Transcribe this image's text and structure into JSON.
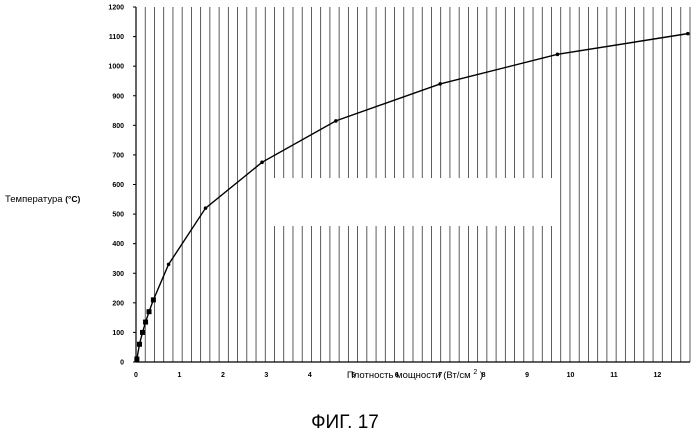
{
  "chart_data": {
    "type": "line",
    "title": "",
    "caption": "ФИГ. 17",
    "ylabel": "Температура",
    "ylabel_unit": "(°C)",
    "xlabel": "Плотность мощности (Вт/см",
    "xlabel_sup": "2",
    "xlabel_close": ")",
    "xlim": [
      0,
      12.75
    ],
    "ylim": [
      0,
      1200
    ],
    "x_ticks": [
      "0",
      "1",
      "2",
      "3",
      "4",
      "5",
      "6",
      "7",
      "8",
      "9",
      "10",
      "11",
      "12"
    ],
    "y_ticks": [
      "0",
      "100",
      "200",
      "300",
      "400",
      "500",
      "600",
      "700",
      "800",
      "900",
      "1000",
      "1100",
      "1200"
    ],
    "grid": "vertical",
    "series": [
      {
        "color": "#000000",
        "x": [
          0.02,
          0.08,
          0.15,
          0.22,
          0.3,
          0.4,
          0.75,
          1.6,
          2.9,
          4.6,
          7.0,
          9.7,
          12.7
        ],
        "y": [
          10,
          60,
          100,
          135,
          170,
          210,
          330,
          520,
          675,
          815,
          940,
          1040,
          1110
        ],
        "markers": [
          {
            "x": 0.02,
            "y": 10,
            "shape": "square"
          },
          {
            "x": 0.08,
            "y": 60,
            "shape": "square"
          },
          {
            "x": 0.15,
            "y": 100,
            "shape": "square"
          },
          {
            "x": 0.22,
            "y": 135,
            "shape": "square"
          },
          {
            "x": 0.3,
            "y": 170,
            "shape": "square"
          },
          {
            "x": 0.4,
            "y": 210,
            "shape": "square"
          },
          {
            "x": 0.75,
            "y": 330,
            "shape": "dot"
          },
          {
            "x": 1.6,
            "y": 520,
            "shape": "dot"
          },
          {
            "x": 2.9,
            "y": 675,
            "shape": "dot"
          },
          {
            "x": 4.6,
            "y": 815,
            "shape": "dot"
          },
          {
            "x": 7.0,
            "y": 940,
            "shape": "dot"
          },
          {
            "x": 9.7,
            "y": 1040,
            "shape": "dot"
          },
          {
            "x": 12.7,
            "y": 1110,
            "shape": "dot"
          }
        ]
      }
    ]
  }
}
